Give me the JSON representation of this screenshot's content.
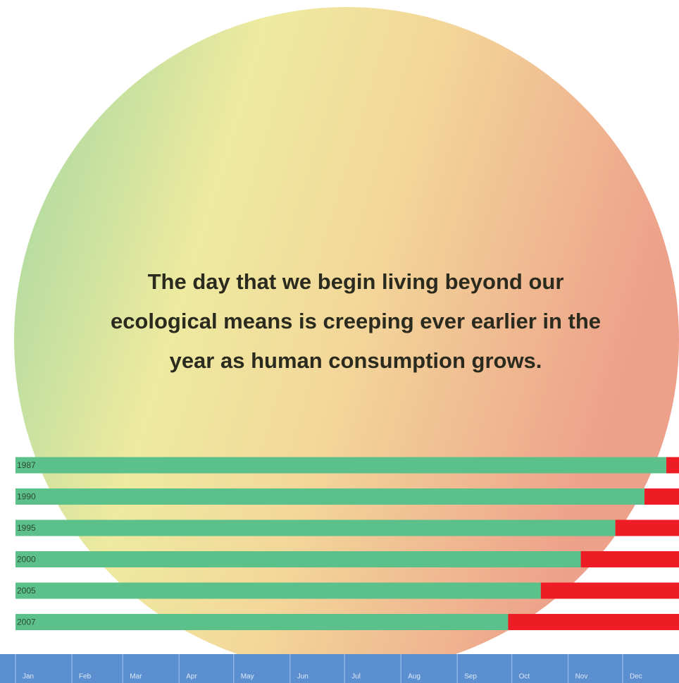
{
  "chart_data": {
    "type": "stacked-barh",
    "title": "The day that we begin living beyond our ecological means is creeping ever earlier in the year as human consumption grows.",
    "categories": [
      "1987",
      "1990",
      "1995",
      "2000",
      "2005",
      "2007"
    ],
    "series": [
      {
        "color": "#5cc08a",
        "values": [
          358,
          346,
          330,
          311,
          289,
          271
        ]
      },
      {
        "color": "#ee1c24",
        "values": [
          7,
          19,
          35,
          54,
          76,
          94
        ]
      }
    ],
    "xlim": [
      0,
      365
    ],
    "xticks": [
      {
        "value": 0,
        "label": "Jan"
      },
      {
        "value": 31,
        "label": "Feb"
      },
      {
        "value": 59,
        "label": "Mar"
      },
      {
        "value": 90,
        "label": "Apr"
      },
      {
        "value": 120,
        "label": "May"
      },
      {
        "value": 151,
        "label": "Jun"
      },
      {
        "value": 181,
        "label": "Jul"
      },
      {
        "value": 212,
        "label": "Aug"
      },
      {
        "value": 243,
        "label": "Sep"
      },
      {
        "value": 273,
        "label": "Oct"
      },
      {
        "value": 304,
        "label": "Nov"
      },
      {
        "value": 334,
        "label": "Dec"
      }
    ]
  }
}
